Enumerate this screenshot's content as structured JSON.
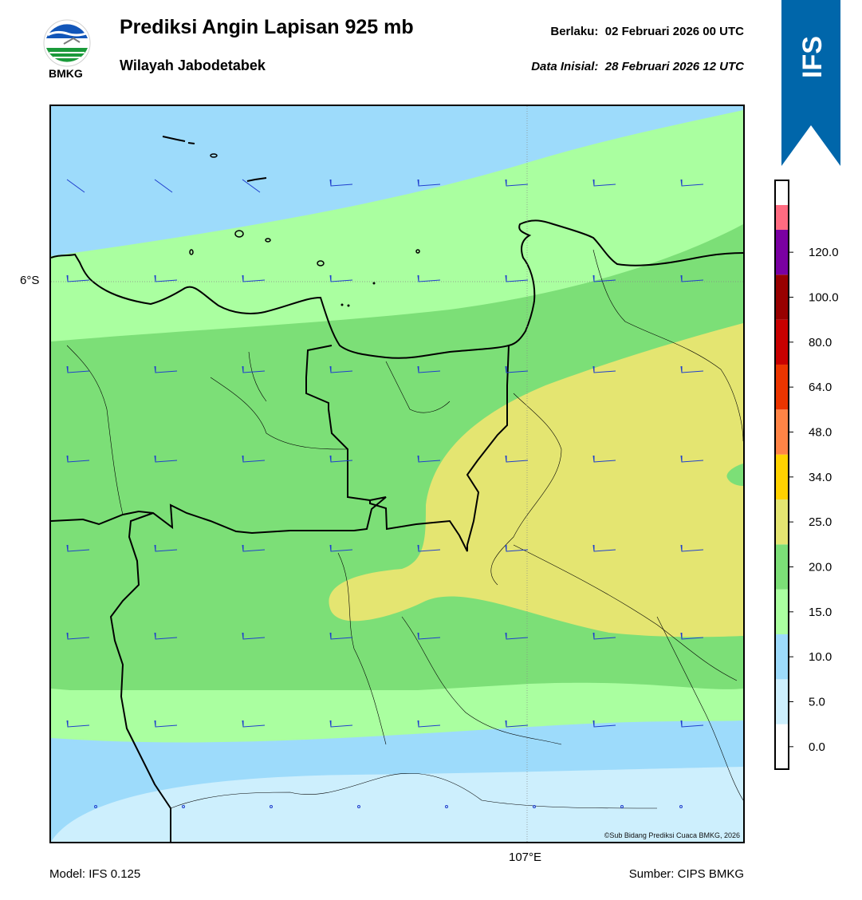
{
  "header": {
    "logo_text": "BMKG",
    "title": "Prediksi Angin Lapisan 925 mb",
    "subtitle": "Wilayah Jabodetabek",
    "valid_label": "Berlaku:",
    "valid_value": "02 Februari 2026 00 UTC",
    "init_label": "Data Inisial:",
    "init_value": "28 Februari 2026 12 UTC",
    "model_badge": "IFS"
  },
  "map": {
    "lat_label": "6°S",
    "lon_label": "107°E",
    "copyright": "©Sub Bidang Prediksi Cuaca BMKG, 2026"
  },
  "footer": {
    "model": "Model: IFS 0.125",
    "source": "Sumber: CIPS BMKG"
  },
  "legend": {
    "levels": [
      "0.0",
      "5.0",
      "10.0",
      "15.0",
      "20.0",
      "25.0",
      "34.0",
      "48.0",
      "64.0",
      "80.0",
      "100.0",
      "120.0"
    ],
    "colors": [
      "#ffffff",
      "#cdeffd",
      "#9ddbfb",
      "#aaffa0",
      "#7cdf77",
      "#e4e571",
      "#ffd200",
      "#ff8446",
      "#eb3500",
      "#c80000",
      "#980000",
      "#7a00a2",
      "#ff6b81"
    ]
  },
  "colors": {
    "badge": "#0066aa",
    "wind_barb": "#1f3ecd",
    "coast": "#000000"
  }
}
